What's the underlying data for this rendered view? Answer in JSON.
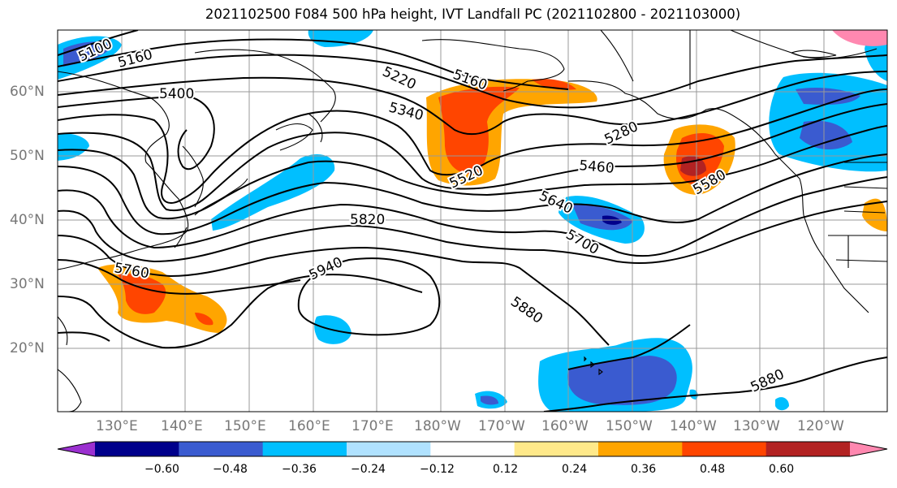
{
  "title": "2021102500 F084 500 hPa height, IVT Landfall PC (2021102800 - 2021103000)",
  "lat_labels": [
    "60°N",
    "50°N",
    "40°N",
    "30°N",
    "20°N"
  ],
  "lon_labels": [
    "130°E",
    "140°E",
    "150°E",
    "160°E",
    "170°E",
    "180°W",
    "170°W",
    "160°W",
    "150°W",
    "140°W",
    "130°W",
    "120°W"
  ],
  "contour_labels": [
    "5100",
    "5160",
    "5220",
    "5160",
    "5400",
    "5340",
    "5280",
    "5460",
    "5520",
    "5580",
    "5640",
    "5700",
    "5820",
    "5760",
    "5940",
    "5880",
    "5880"
  ],
  "colorbar": {
    "ticks": [
      "−0.60",
      "−0.48",
      "−0.36",
      "−0.24",
      "−0.12",
      "0.12",
      "0.24",
      "0.36",
      "0.48",
      "0.60"
    ],
    "colors": [
      "#9b30d0",
      "#00008b",
      "#3a5bd0",
      "#00bfff",
      "#b0e2ff",
      "#ffffff",
      "#ffe98a",
      "#ffa500",
      "#ff4500",
      "#b22222",
      "#ff88b0"
    ]
  },
  "legend_colors": {
    "neg_light": "#b0e2ff",
    "neg_mid": "#00bfff",
    "neg_strong": "#3a5bd0",
    "neg_max": "#00008b",
    "pos_light": "#ffe98a",
    "pos_mid": "#ffa500",
    "pos_strong": "#ff4500",
    "pos_max": "#b22222"
  }
}
